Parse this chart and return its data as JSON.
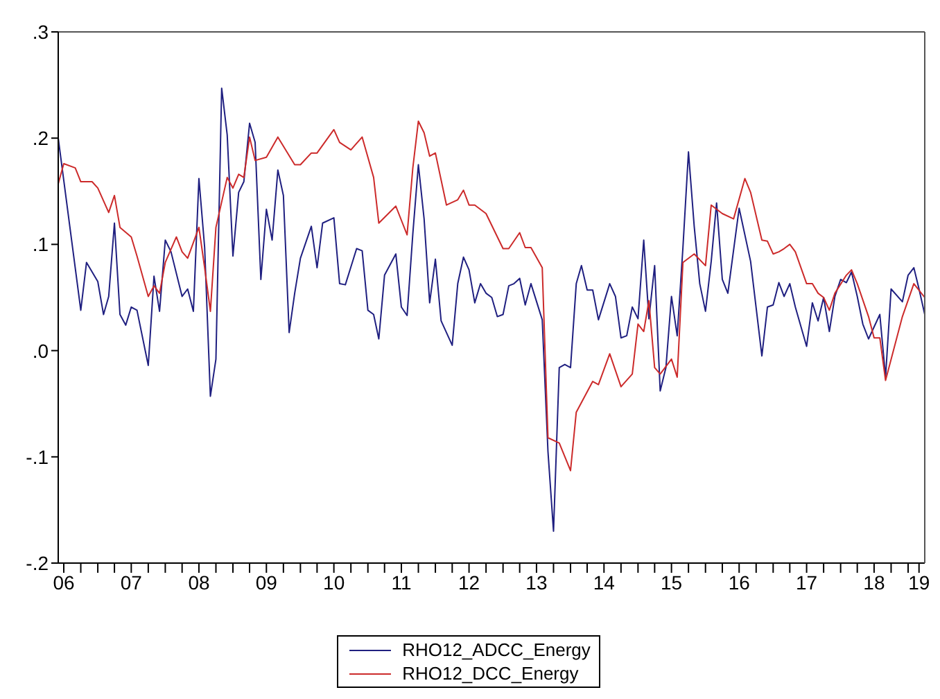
{
  "chart_data": {
    "type": "line",
    "xlim": [
      "2006-06",
      "2019-04"
    ],
    "ylim": [
      -0.2,
      0.3
    ],
    "yticks": [
      {
        "value": 0.3,
        "label": ".3"
      },
      {
        "value": 0.2,
        "label": ".2"
      },
      {
        "value": 0.1,
        "label": ".1"
      },
      {
        "value": 0,
        "label": ".0"
      },
      {
        "value": -0.1,
        "label": "-.1"
      },
      {
        "value": -0.2,
        "label": "-.2"
      }
    ],
    "xticks": [
      {
        "value": "2006-07",
        "label": "06"
      },
      {
        "value": "2006-10",
        "label": null
      },
      {
        "value": "2007-01",
        "label": null
      },
      {
        "value": "2007-04",
        "label": null
      },
      {
        "value": "2007-07",
        "label": "07"
      },
      {
        "value": "2007-10",
        "label": null
      },
      {
        "value": "2008-01",
        "label": null
      },
      {
        "value": "2008-04",
        "label": null
      },
      {
        "value": "2008-07",
        "label": "08"
      },
      {
        "value": "2008-10",
        "label": null
      },
      {
        "value": "2009-01",
        "label": null
      },
      {
        "value": "2009-04",
        "label": null
      },
      {
        "value": "2009-07",
        "label": "09"
      },
      {
        "value": "2009-10",
        "label": null
      },
      {
        "value": "2010-01",
        "label": null
      },
      {
        "value": "2010-04",
        "label": null
      },
      {
        "value": "2010-07",
        "label": "10"
      },
      {
        "value": "2010-10",
        "label": null
      },
      {
        "value": "2011-01",
        "label": null
      },
      {
        "value": "2011-04",
        "label": null
      },
      {
        "value": "2011-07",
        "label": "11"
      },
      {
        "value": "2011-10",
        "label": null
      },
      {
        "value": "2012-01",
        "label": null
      },
      {
        "value": "2012-04",
        "label": null
      },
      {
        "value": "2012-07",
        "label": "12"
      },
      {
        "value": "2012-10",
        "label": null
      },
      {
        "value": "2013-01",
        "label": null
      },
      {
        "value": "2013-04",
        "label": null
      },
      {
        "value": "2013-07",
        "label": "13"
      },
      {
        "value": "2013-10",
        "label": null
      },
      {
        "value": "2014-01",
        "label": null
      },
      {
        "value": "2014-04",
        "label": null
      },
      {
        "value": "2014-07",
        "label": "14"
      },
      {
        "value": "2014-10",
        "label": null
      },
      {
        "value": "2015-01",
        "label": null
      },
      {
        "value": "2015-04",
        "label": null
      },
      {
        "value": "2015-07",
        "label": "15"
      },
      {
        "value": "2015-10",
        "label": null
      },
      {
        "value": "2016-01",
        "label": null
      },
      {
        "value": "2016-04",
        "label": null
      },
      {
        "value": "2016-07",
        "label": "16"
      },
      {
        "value": "2016-10",
        "label": null
      },
      {
        "value": "2017-01",
        "label": null
      },
      {
        "value": "2017-04",
        "label": null
      },
      {
        "value": "2017-07",
        "label": "17"
      },
      {
        "value": "2017-10",
        "label": null
      },
      {
        "value": "2018-01",
        "label": null
      },
      {
        "value": "2018-04",
        "label": null
      },
      {
        "value": "2018-07",
        "label": "18"
      },
      {
        "value": "2018-10",
        "label": null
      },
      {
        "value": "2019-01",
        "label": null
      },
      {
        "value": "2019-03",
        "label": "19"
      }
    ],
    "legend": "bottom",
    "series": [
      {
        "name": "RHO12_ADCC_Energy",
        "color": "#1f1f80",
        "x": [
          "2006-06",
          "2006-10",
          "2006-11",
          "2007-01",
          "2007-02",
          "2007-03",
          "2007-04",
          "2007-05",
          "2007-06",
          "2007-07",
          "2007-08",
          "2007-10",
          "2007-11",
          "2007-12",
          "2008-01",
          "2008-02",
          "2008-04",
          "2008-05",
          "2008-06",
          "2008-07",
          "2008-08",
          "2008-09",
          "2008-10",
          "2008-11",
          "2008-12",
          "2009-01",
          "2009-02",
          "2009-03",
          "2009-04",
          "2009-05",
          "2009-06",
          "2009-07",
          "2009-08",
          "2009-09",
          "2009-10",
          "2009-11",
          "2009-12",
          "2010-01",
          "2010-03",
          "2010-04",
          "2010-05",
          "2010-07",
          "2010-08",
          "2010-09",
          "2010-11",
          "2010-12",
          "2011-01",
          "2011-02",
          "2011-03",
          "2011-04",
          "2011-06",
          "2011-07",
          "2011-08",
          "2011-09",
          "2011-10",
          "2011-11",
          "2011-12",
          "2012-01",
          "2012-02",
          "2012-04",
          "2012-05",
          "2012-06",
          "2012-07",
          "2012-08",
          "2012-09",
          "2012-10",
          "2012-11",
          "2012-12",
          "2013-01",
          "2013-02",
          "2013-03",
          "2013-04",
          "2013-05",
          "2013-06",
          "2013-08",
          "2013-09",
          "2013-10",
          "2013-11",
          "2013-12",
          "2014-01",
          "2014-02",
          "2014-03",
          "2014-04",
          "2014-05",
          "2014-06",
          "2014-08",
          "2014-09",
          "2014-10",
          "2014-11",
          "2014-12",
          "2015-01",
          "2015-02",
          "2015-03",
          "2015-04",
          "2015-05",
          "2015-06",
          "2015-07",
          "2015-08",
          "2015-09",
          "2015-10",
          "2015-11",
          "2015-12",
          "2016-01",
          "2016-02",
          "2016-03",
          "2016-04",
          "2016-05",
          "2016-07",
          "2016-09",
          "2016-11",
          "2016-12",
          "2017-01",
          "2017-02",
          "2017-03",
          "2017-04",
          "2017-05",
          "2017-07",
          "2017-08",
          "2017-09",
          "2017-10",
          "2017-11",
          "2017-12",
          "2018-01",
          "2018-02",
          "2018-03",
          "2018-04",
          "2018-05",
          "2018-06",
          "2018-08",
          "2018-09",
          "2018-10",
          "2018-12",
          "2019-01",
          "2019-02",
          "2019-03",
          "2019-04"
        ],
        "values": [
          0.2,
          0.038,
          0.083,
          0.065,
          0.034,
          0.051,
          0.12,
          0.034,
          0.024,
          0.041,
          0.038,
          -0.014,
          0.07,
          0.037,
          0.104,
          0.093,
          0.051,
          0.058,
          0.037,
          0.162,
          0.097,
          -0.043,
          -0.008,
          0.247,
          0.203,
          0.089,
          0.149,
          0.159,
          0.214,
          0.196,
          0.067,
          0.133,
          0.104,
          0.17,
          0.146,
          0.017,
          0.054,
          0.087,
          0.117,
          0.078,
          0.12,
          0.125,
          0.063,
          0.062,
          0.096,
          0.094,
          0.038,
          0.034,
          0.011,
          0.071,
          0.091,
          0.041,
          0.033,
          0.11,
          0.175,
          0.124,
          0.045,
          0.086,
          0.028,
          0.005,
          0.063,
          0.088,
          0.076,
          0.045,
          0.063,
          0.054,
          0.05,
          0.032,
          0.034,
          0.061,
          0.063,
          0.068,
          0.043,
          0.063,
          0.029,
          -0.095,
          -0.17,
          -0.016,
          -0.013,
          -0.016,
          0.063,
          0.08,
          0.057,
          0.057,
          0.029,
          0.063,
          0.051,
          0.012,
          0.014,
          0.041,
          0.03,
          0.104,
          0.03,
          0.08,
          -0.038,
          -0.016,
          0.051,
          0.014,
          0.097,
          0.187,
          0.117,
          0.063,
          0.037,
          0.084,
          0.139,
          0.067,
          0.054,
          0.134,
          0.084,
          -0.005,
          0.041,
          0.043,
          0.064,
          0.051,
          0.063,
          0.041,
          0.004,
          0.045,
          0.028,
          0.05,
          0.018,
          0.051,
          0.067,
          0.064,
          0.074,
          0.051,
          0.025,
          0.011,
          0.034,
          -0.025,
          0.058,
          0.046,
          0.071,
          0.078,
          0.058,
          0.034
        ]
      },
      {
        "name": "RHO12_DCC_Energy",
        "color": "#cc2a2a",
        "x": [
          "2006-06",
          "2006-07",
          "2006-09",
          "2006-10",
          "2006-12",
          "2007-01",
          "2007-03",
          "2007-04",
          "2007-05",
          "2007-07",
          "2007-08",
          "2007-10",
          "2007-11",
          "2007-12",
          "2008-01",
          "2008-03",
          "2008-04",
          "2008-05",
          "2008-07",
          "2008-08",
          "2008-09",
          "2008-10",
          "2008-12",
          "2009-01",
          "2009-02",
          "2009-03",
          "2009-04",
          "2009-05",
          "2009-07",
          "2009-09",
          "2009-12",
          "2010-01",
          "2010-03",
          "2010-04",
          "2010-07",
          "2010-08",
          "2010-10",
          "2010-12",
          "2011-02",
          "2011-03",
          "2011-06",
          "2011-08",
          "2011-09",
          "2011-10",
          "2011-11",
          "2011-12",
          "2012-01",
          "2012-03",
          "2012-05",
          "2012-06",
          "2012-07",
          "2012-08",
          "2012-10",
          "2013-01",
          "2013-02",
          "2013-04",
          "2013-05",
          "2013-06",
          "2013-08",
          "2013-09",
          "2013-11",
          "2014-01",
          "2014-02",
          "2014-05",
          "2014-06",
          "2014-08",
          "2014-10",
          "2014-12",
          "2015-01",
          "2015-02",
          "2015-03",
          "2015-04",
          "2015-05",
          "2015-07",
          "2015-08",
          "2015-09",
          "2015-11",
          "2016-01",
          "2016-02",
          "2016-04",
          "2016-06",
          "2016-08",
          "2016-09",
          "2016-11",
          "2016-12",
          "2017-01",
          "2017-02",
          "2017-03",
          "2017-04",
          "2017-05",
          "2017-07",
          "2017-08",
          "2017-09",
          "2017-10",
          "2017-11",
          "2017-12",
          "2018-02",
          "2018-03",
          "2018-04",
          "2018-06",
          "2018-07",
          "2018-08",
          "2018-09",
          "2018-12",
          "2019-02",
          "2019-04"
        ],
        "values": [
          0.157,
          0.176,
          0.172,
          0.159,
          0.159,
          0.153,
          0.13,
          0.146,
          0.116,
          0.107,
          0.089,
          0.051,
          0.061,
          0.054,
          0.083,
          0.107,
          0.093,
          0.087,
          0.116,
          0.078,
          0.037,
          0.116,
          0.163,
          0.153,
          0.166,
          0.163,
          0.201,
          0.179,
          0.182,
          0.201,
          0.175,
          0.175,
          0.186,
          0.186,
          0.208,
          0.196,
          0.189,
          0.201,
          0.163,
          0.12,
          0.136,
          0.109,
          0.172,
          0.216,
          0.205,
          0.183,
          0.186,
          0.137,
          0.142,
          0.151,
          0.137,
          0.137,
          0.129,
          0.096,
          0.096,
          0.111,
          0.097,
          0.097,
          0.078,
          -0.082,
          -0.087,
          -0.113,
          -0.058,
          -0.029,
          -0.032,
          -0.003,
          -0.034,
          -0.022,
          0.025,
          0.018,
          0.047,
          -0.016,
          -0.022,
          -0.008,
          -0.025,
          0.083,
          0.091,
          0.08,
          0.137,
          0.129,
          0.124,
          0.162,
          0.149,
          0.104,
          0.103,
          0.091,
          0.093,
          0.096,
          0.1,
          0.093,
          0.063,
          0.063,
          0.054,
          0.05,
          0.038,
          0.054,
          0.071,
          0.076,
          0.063,
          0.032,
          0.012,
          0.012,
          -0.028,
          0.032,
          0.063,
          0.05
        ]
      }
    ]
  }
}
